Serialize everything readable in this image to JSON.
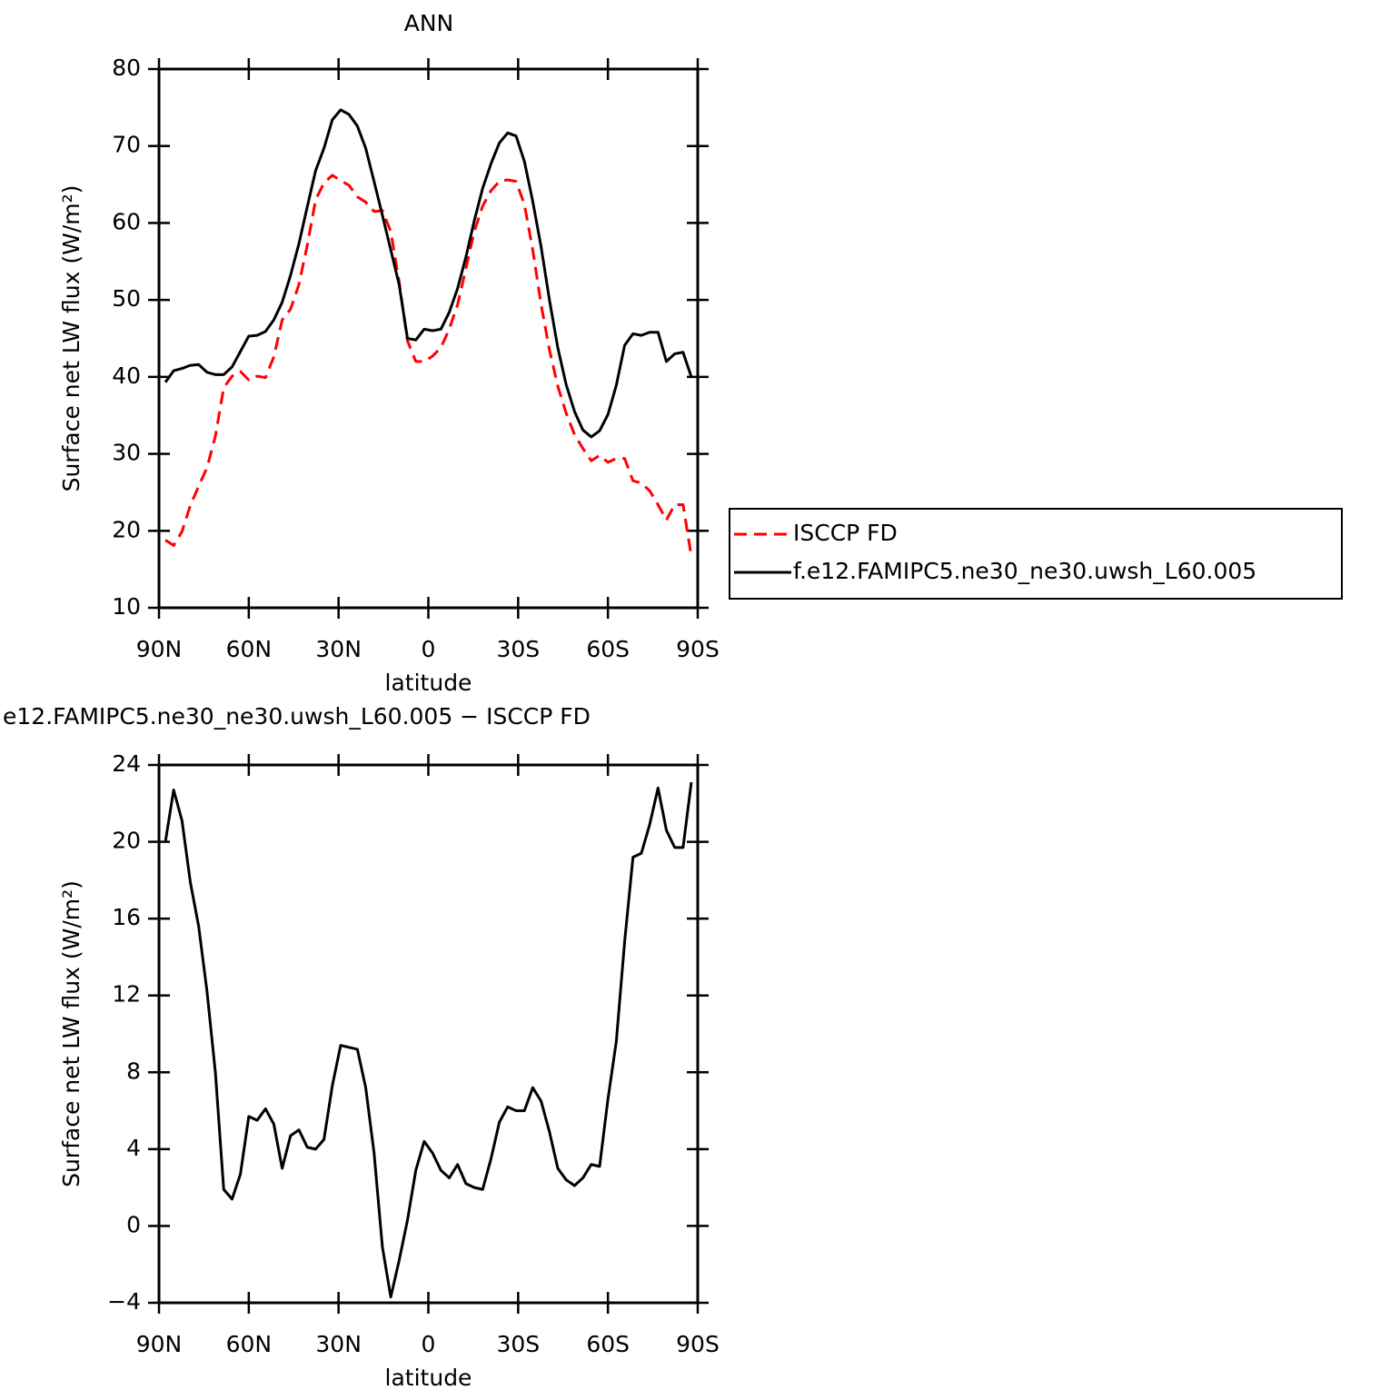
{
  "chart_data": [
    {
      "type": "line",
      "title": "ANN",
      "xlabel": "latitude",
      "ylabel": "Surface net LW flux (W/m²)",
      "x": [
        87.86,
        85.1,
        82.31,
        79.53,
        76.74,
        73.95,
        71.16,
        68.37,
        65.58,
        62.79,
        60.0,
        57.21,
        54.42,
        51.63,
        48.84,
        46.04,
        43.25,
        40.46,
        37.67,
        34.88,
        32.09,
        29.3,
        26.51,
        23.72,
        20.93,
        18.14,
        15.35,
        12.56,
        9.77,
        6.98,
        4.19,
        1.4,
        -1.4,
        -4.19,
        -6.98,
        -9.77,
        -12.56,
        -15.35,
        -18.14,
        -20.93,
        -23.72,
        -26.51,
        -29.3,
        -32.09,
        -34.88,
        -37.67,
        -40.46,
        -43.25,
        -46.04,
        -48.84,
        -51.63,
        -54.42,
        -57.21,
        -60.0,
        -62.79,
        -65.58,
        -68.37,
        -71.16,
        -73.95,
        -76.74,
        -79.53,
        -82.31,
        -85.1,
        -87.86
      ],
      "xlim": [
        90,
        -90
      ],
      "xticks": [
        {
          "value": 90,
          "label": "90N"
        },
        {
          "value": 60,
          "label": "60N"
        },
        {
          "value": 30,
          "label": "30N"
        },
        0,
        {
          "value": -30,
          "label": "30S"
        },
        {
          "value": -60,
          "label": "60S"
        },
        {
          "value": -90,
          "label": "90S"
        }
      ],
      "ylim": [
        10,
        80
      ],
      "yticks": [
        10,
        20,
        30,
        40,
        50,
        60,
        70,
        80
      ],
      "legend_position": "right",
      "series": [
        {
          "name": "ISCCP FD",
          "color": "#ff0000",
          "dash": "dashed",
          "values": [
            18.8,
            18.1,
            19.9,
            23.3,
            25.8,
            28.2,
            32.3,
            38.6,
            40.1,
            40.7,
            39.6,
            40.1,
            39.9,
            42.6,
            47.4,
            48.8,
            52.0,
            57.1,
            63.0,
            65.2,
            66.2,
            65.5,
            64.9,
            63.4,
            62.7,
            61.5,
            61.6,
            58.9,
            52.4,
            44.7,
            42.0,
            42.0,
            42.7,
            43.8,
            46.2,
            49.4,
            54.1,
            58.9,
            62.2,
            64.2,
            65.4,
            65.6,
            65.4,
            62.4,
            56.5,
            49.4,
            43.5,
            38.8,
            35.3,
            32.5,
            30.7,
            29.1,
            29.8,
            28.9,
            29.4,
            29.4,
            26.5,
            26.2,
            25.2,
            23.4,
            21.4,
            23.4,
            23.4,
            16.7
          ]
        },
        {
          "name": "f.e12.FAMIPC5.ne30_ne30.uwsh_L60.005",
          "color": "#000000",
          "dash": "solid",
          "values": [
            39.3,
            40.8,
            41.1,
            41.5,
            41.6,
            40.6,
            40.3,
            40.3,
            41.3,
            43.3,
            45.3,
            45.4,
            45.9,
            47.4,
            49.7,
            53.2,
            57.3,
            62.1,
            66.8,
            69.7,
            73.4,
            74.7,
            74.1,
            72.6,
            69.7,
            65.4,
            61.0,
            56.5,
            52.0,
            45.0,
            44.8,
            46.2,
            46.0,
            46.2,
            48.4,
            51.5,
            55.6,
            60.3,
            64.5,
            67.7,
            70.4,
            71.7,
            71.3,
            68.0,
            62.8,
            56.9,
            50.0,
            43.8,
            39.0,
            35.5,
            33.1,
            32.2,
            33.0,
            35.1,
            38.9,
            44.1,
            45.6,
            45.4,
            45.8,
            45.8,
            42.0,
            43.0,
            43.2,
            40.0
          ]
        }
      ]
    },
    {
      "type": "line",
      "title": "e12.FAMIPC5.ne30_ne30.uwsh_L60.005 − ISCCP FD",
      "xlabel": "latitude",
      "ylabel": "Surface net LW flux (W/m²)",
      "x": [
        87.86,
        85.1,
        82.31,
        79.53,
        76.74,
        73.95,
        71.16,
        68.37,
        65.58,
        62.79,
        60.0,
        57.21,
        54.42,
        51.63,
        48.84,
        46.04,
        43.25,
        40.46,
        37.67,
        34.88,
        32.09,
        29.3,
        26.51,
        23.72,
        20.93,
        18.14,
        15.35,
        12.56,
        9.77,
        6.98,
        4.19,
        1.4,
        -1.4,
        -4.19,
        -6.98,
        -9.77,
        -12.56,
        -15.35,
        -18.14,
        -20.93,
        -23.72,
        -26.51,
        -29.3,
        -32.09,
        -34.88,
        -37.67,
        -40.46,
        -43.25,
        -46.04,
        -48.84,
        -51.63,
        -54.42,
        -57.21,
        -60.0,
        -62.79,
        -65.58,
        -68.37,
        -71.16,
        -73.95,
        -76.74,
        -79.53,
        -82.31,
        -85.1,
        -87.86
      ],
      "xlim": [
        90,
        -90
      ],
      "xticks": [
        {
          "value": 90,
          "label": "90N"
        },
        {
          "value": 60,
          "label": "60N"
        },
        {
          "value": 30,
          "label": "30N"
        },
        0,
        {
          "value": -30,
          "label": "30S"
        },
        {
          "value": -60,
          "label": "60S"
        },
        {
          "value": -90,
          "label": "90S"
        }
      ],
      "ylim": [
        -4,
        24
      ],
      "yticks": [
        {
          "value": -4,
          "label": "−4"
        },
        0,
        4,
        8,
        12,
        16,
        20,
        24
      ],
      "series": [
        {
          "color": "#000000",
          "dash": "solid",
          "values": [
            20.0,
            22.7,
            21.1,
            17.9,
            15.6,
            12.2,
            8.0,
            1.9,
            1.4,
            2.7,
            5.7,
            5.5,
            6.1,
            5.3,
            3.0,
            4.7,
            5.0,
            4.1,
            4.0,
            4.5,
            7.3,
            9.4,
            9.3,
            9.2,
            7.2,
            3.8,
            -1.1,
            -3.7,
            -1.8,
            0.3,
            2.9,
            4.4,
            3.8,
            2.9,
            2.5,
            3.2,
            2.2,
            2.0,
            1.9,
            3.5,
            5.4,
            6.2,
            6.0,
            6.0,
            7.2,
            6.5,
            4.9,
            3.0,
            2.4,
            2.1,
            2.5,
            3.2,
            3.1,
            6.6,
            9.6,
            14.8,
            19.2,
            19.4,
            20.9,
            22.8,
            20.6,
            19.7,
            19.7,
            23.1
          ]
        }
      ]
    }
  ]
}
